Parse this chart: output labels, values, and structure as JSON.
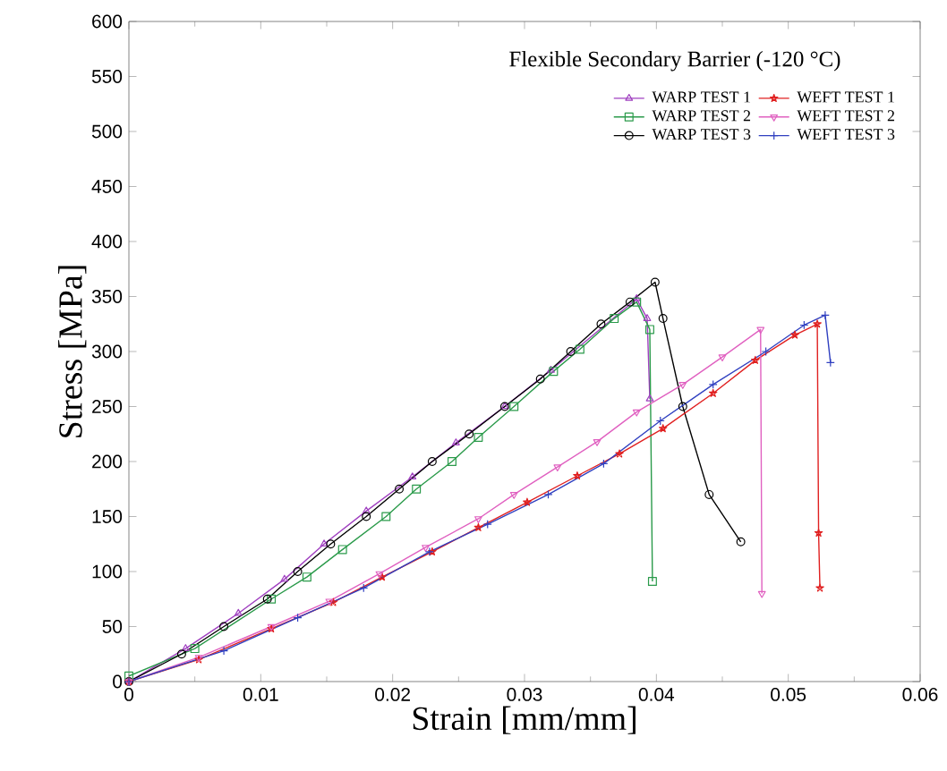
{
  "chart_data": {
    "type": "line",
    "xlabel": "Strain [mm/mm]",
    "ylabel": "Stress [MPa]",
    "legend_title": "Flexible Secondary Barrier (-120 °C)",
    "xlim": [
      0,
      0.06
    ],
    "xticks": [
      0,
      0.01,
      0.02,
      0.03,
      0.04,
      0.05,
      0.06
    ],
    "ylim": [
      0,
      600
    ],
    "yticks": [
      0,
      50,
      100,
      150,
      200,
      250,
      300,
      350,
      400,
      450,
      500,
      550,
      600
    ],
    "grid": false,
    "legend": "top right",
    "line_style": "solid",
    "series": [
      {
        "name": "WARP TEST 1",
        "color": "#a040c0",
        "marker": "triangle",
        "x": [
          0,
          0.0043,
          0.0083,
          0.0118,
          0.0148,
          0.018,
          0.0215,
          0.0248,
          0.0285,
          0.032,
          0.0385,
          0.0393,
          0.0395
        ],
        "values": [
          0,
          30,
          62,
          93,
          125,
          155,
          186,
          217,
          250,
          283,
          348,
          330,
          257
        ]
      },
      {
        "name": "WARP TEST 2",
        "color": "#2a9a4a",
        "marker": "square",
        "x": [
          0,
          0.005,
          0.0108,
          0.0135,
          0.0162,
          0.0195,
          0.0218,
          0.0245,
          0.0265,
          0.0292,
          0.0322,
          0.0342,
          0.0368,
          0.0385,
          0.0395,
          0.0397
        ],
        "values": [
          5,
          30,
          75,
          95,
          120,
          150,
          175,
          200,
          222,
          250,
          282,
          302,
          330,
          345,
          320,
          91
        ]
      },
      {
        "name": "WARP TEST 3",
        "color": "#000000",
        "marker": "circle",
        "x": [
          0,
          0.004,
          0.0072,
          0.0105,
          0.0128,
          0.0153,
          0.018,
          0.0205,
          0.023,
          0.0258,
          0.0285,
          0.0312,
          0.0335,
          0.0358,
          0.038,
          0.0399,
          0.0405,
          0.042,
          0.044,
          0.0464
        ],
        "values": [
          0,
          25,
          50,
          75,
          100,
          125,
          150,
          175,
          200,
          225,
          250,
          275,
          300,
          325,
          345,
          363,
          330,
          250,
          170,
          127
        ]
      },
      {
        "name": "WEFT TEST 1",
        "color": "#e02020",
        "marker": "star",
        "x": [
          0,
          0.0053,
          0.0108,
          0.0155,
          0.0192,
          0.023,
          0.0265,
          0.0302,
          0.034,
          0.0372,
          0.0405,
          0.0443,
          0.0475,
          0.0505,
          0.0522,
          0.0523,
          0.0524
        ],
        "values": [
          0,
          20,
          48,
          72,
          95,
          118,
          140,
          163,
          187,
          207,
          230,
          262,
          292,
          315,
          325,
          135,
          85
        ]
      },
      {
        "name": "WEFT TEST 2",
        "color": "#e060c0",
        "marker": "triangle down",
        "x": [
          0,
          0.0053,
          0.0108,
          0.0152,
          0.019,
          0.0225,
          0.0265,
          0.0292,
          0.0325,
          0.0355,
          0.0385,
          0.042,
          0.045,
          0.0479,
          0.048
        ],
        "values": [
          0,
          22,
          50,
          73,
          98,
          122,
          148,
          170,
          195,
          218,
          245,
          270,
          295,
          320,
          80
        ]
      },
      {
        "name": "WEFT TEST 3",
        "color": "#3040c0",
        "marker": "cross",
        "x": [
          0,
          0.0072,
          0.0128,
          0.0178,
          0.0228,
          0.0272,
          0.0318,
          0.036,
          0.0403,
          0.0443,
          0.0483,
          0.0512,
          0.0528,
          0.0532
        ],
        "values": [
          0,
          28,
          58,
          85,
          118,
          143,
          170,
          198,
          237,
          270,
          300,
          324,
          333,
          290
        ]
      }
    ]
  }
}
